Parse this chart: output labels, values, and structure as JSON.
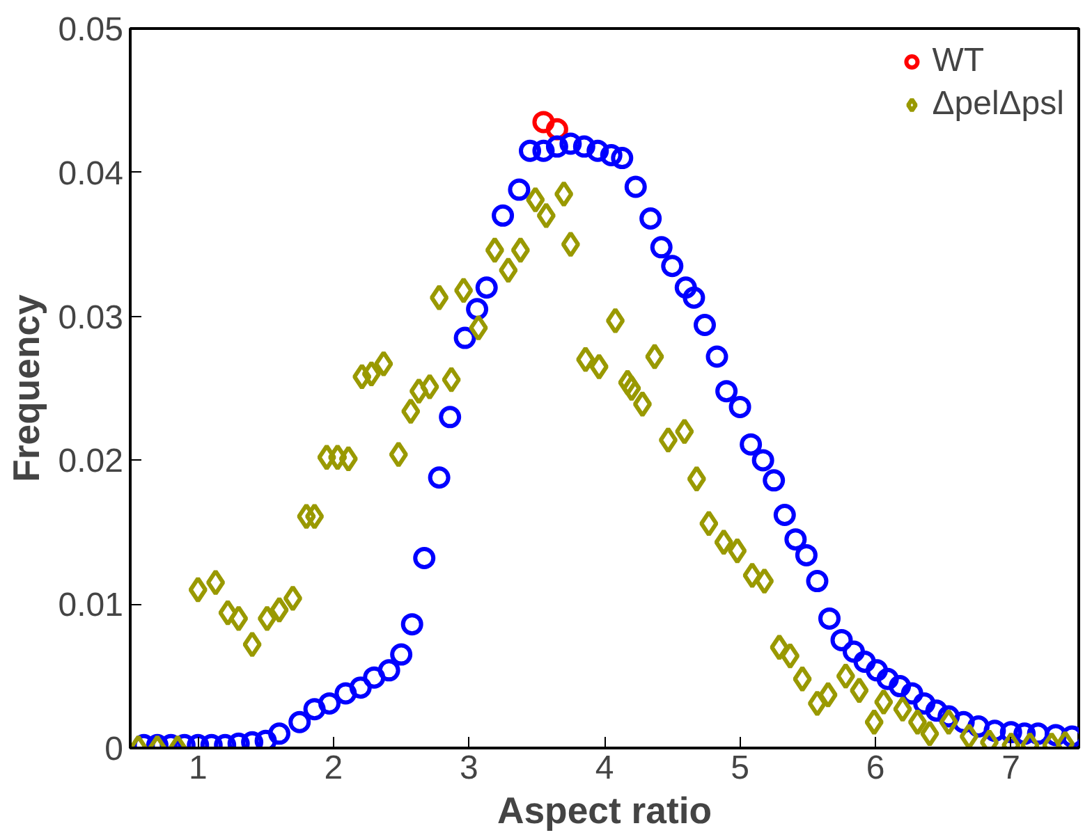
{
  "chart_data": {
    "type": "scatter",
    "xlabel": "Aspect ratio",
    "ylabel": "Frequency",
    "xlim": [
      0.5,
      7.5
    ],
    "ylim": [
      0,
      0.05
    ],
    "xticks": [
      1,
      2,
      3,
      4,
      5,
      6,
      7
    ],
    "yticks": [
      0,
      0.01,
      0.02,
      0.03,
      0.04,
      0.05
    ],
    "legend": "top right",
    "grid": false,
    "series": [
      {
        "name": "WT",
        "color": "#ff0000",
        "marker": "circle",
        "x": [
          3.55,
          3.65
        ],
        "values": [
          0.0435,
          0.043
        ]
      },
      {
        "color": "#0000ff",
        "marker": "circle",
        "x": [
          0.6,
          0.7,
          0.8,
          0.9,
          1.0,
          1.1,
          1.2,
          1.3,
          1.4,
          1.5,
          1.6,
          1.75,
          1.86,
          1.97,
          2.09,
          2.2,
          2.3,
          2.41,
          2.5,
          2.58,
          2.67,
          2.78,
          2.86,
          2.97,
          3.06,
          3.13,
          3.25,
          3.37,
          3.45,
          3.55,
          3.65,
          3.75,
          3.85,
          3.95,
          4.05,
          4.13,
          4.23,
          4.34,
          4.42,
          4.5,
          4.6,
          4.66,
          4.74,
          4.83,
          4.9,
          5.0,
          5.08,
          5.17,
          5.25,
          5.33,
          5.41,
          5.49,
          5.57,
          5.66,
          5.75,
          5.84,
          5.92,
          6.01,
          6.09,
          6.18,
          6.27,
          6.36,
          6.45,
          6.54,
          6.65,
          6.76,
          6.88,
          7.0,
          7.1,
          7.2,
          7.33,
          7.45
        ],
        "values": [
          0.0002,
          0.0002,
          0.0002,
          0.0002,
          0.0002,
          0.0002,
          0.0002,
          0.0003,
          0.0004,
          0.0005,
          0.001,
          0.0018,
          0.0027,
          0.0031,
          0.0038,
          0.0042,
          0.0049,
          0.0054,
          0.0065,
          0.0086,
          0.0132,
          0.0188,
          0.023,
          0.0285,
          0.0305,
          0.032,
          0.037,
          0.0388,
          0.0415,
          0.0415,
          0.0418,
          0.042,
          0.0418,
          0.0415,
          0.0412,
          0.041,
          0.039,
          0.0368,
          0.0348,
          0.0335,
          0.032,
          0.0313,
          0.0294,
          0.0272,
          0.0248,
          0.0237,
          0.0211,
          0.02,
          0.0186,
          0.0162,
          0.0145,
          0.0134,
          0.0116,
          0.009,
          0.0075,
          0.0067,
          0.006,
          0.0054,
          0.0048,
          0.0043,
          0.0038,
          0.0031,
          0.0026,
          0.0022,
          0.0018,
          0.0015,
          0.0012,
          0.0011,
          0.001,
          0.001,
          0.0009,
          0.0008
        ]
      },
      {
        "name": "ΔpelΔpsl",
        "color": "#999900",
        "marker": "diamond",
        "x": [
          0.56,
          0.7,
          0.85,
          1.0,
          1.13,
          1.22,
          1.3,
          1.4,
          1.51,
          1.6,
          1.7,
          1.8,
          1.86,
          1.95,
          2.03,
          2.11,
          2.21,
          2.28,
          2.37,
          2.48,
          2.57,
          2.63,
          2.71,
          2.78,
          2.87,
          2.96,
          3.07,
          3.19,
          3.29,
          3.38,
          3.49,
          3.57,
          3.7,
          3.75,
          3.86,
          3.96,
          4.08,
          4.17,
          4.2,
          4.28,
          4.37,
          4.47,
          4.59,
          4.68,
          4.77,
          4.88,
          4.98,
          5.09,
          5.18,
          5.29,
          5.37,
          5.46,
          5.57,
          5.65,
          5.78,
          5.88,
          5.99,
          6.06,
          6.2,
          6.31,
          6.4,
          6.54,
          6.69,
          6.84,
          7.0,
          7.14,
          7.3,
          7.4
        ],
        "values": [
          0,
          0,
          0,
          0.011,
          0.0115,
          0.0094,
          0.009,
          0.0072,
          0.009,
          0.0096,
          0.0104,
          0.0161,
          0.0161,
          0.0202,
          0.0202,
          0.0201,
          0.0258,
          0.026,
          0.0267,
          0.0204,
          0.0234,
          0.0248,
          0.0251,
          0.0313,
          0.0256,
          0.0318,
          0.0292,
          0.0346,
          0.0332,
          0.0346,
          0.0381,
          0.037,
          0.0385,
          0.035,
          0.027,
          0.0265,
          0.0297,
          0.0254,
          0.025,
          0.0239,
          0.0272,
          0.0214,
          0.022,
          0.0187,
          0.0156,
          0.0143,
          0.0137,
          0.012,
          0.0116,
          0.007,
          0.0064,
          0.0048,
          0.0031,
          0.0037,
          0.005,
          0.004,
          0.0018,
          0.0032,
          0.0027,
          0.0018,
          0.001,
          0.0018,
          0.0008,
          0.0004,
          0.0002,
          0.0002,
          0.0002,
          0.0003
        ]
      }
    ]
  }
}
